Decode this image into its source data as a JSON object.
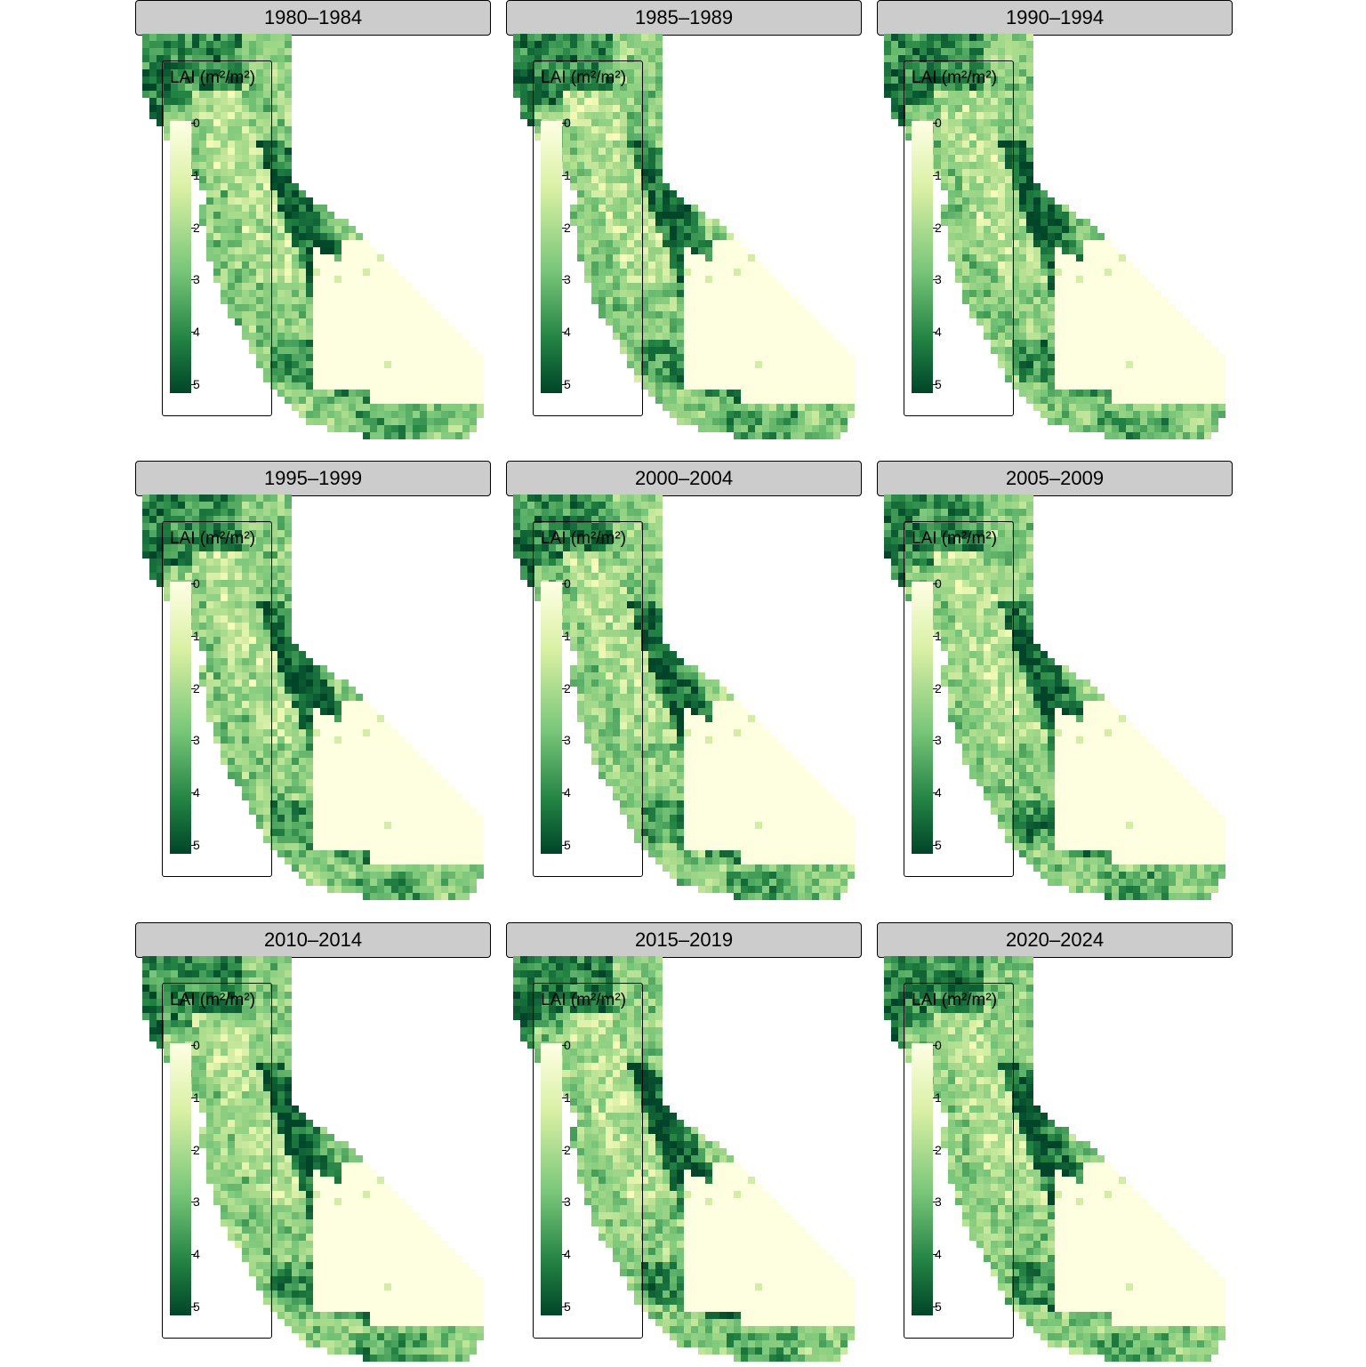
{
  "panels": [
    {
      "title": "1980–1984",
      "seed": 11
    },
    {
      "title": "1985–1989",
      "seed": 23
    },
    {
      "title": "1990–1994",
      "seed": 37
    },
    {
      "title": "1995–1999",
      "seed": 41
    },
    {
      "title": "2000–2004",
      "seed": 53
    },
    {
      "title": "2005–2009",
      "seed": 67
    },
    {
      "title": "2010–2014",
      "seed": 71
    },
    {
      "title": "2015–2019",
      "seed": 83
    },
    {
      "title": "2020–2024",
      "seed": 97
    }
  ],
  "legend": {
    "title": "LAI (m²/m²)",
    "ticks": [
      "0",
      "1",
      "2",
      "3",
      "4",
      "5"
    ],
    "range": [
      0,
      5
    ]
  },
  "colors": {
    "low": "#ffffe5",
    "mid_low": "#d9f0a3",
    "mid": "#78c679",
    "mid_high": "#238443",
    "high": "#004529",
    "strip_bg": "#cccccc"
  }
}
